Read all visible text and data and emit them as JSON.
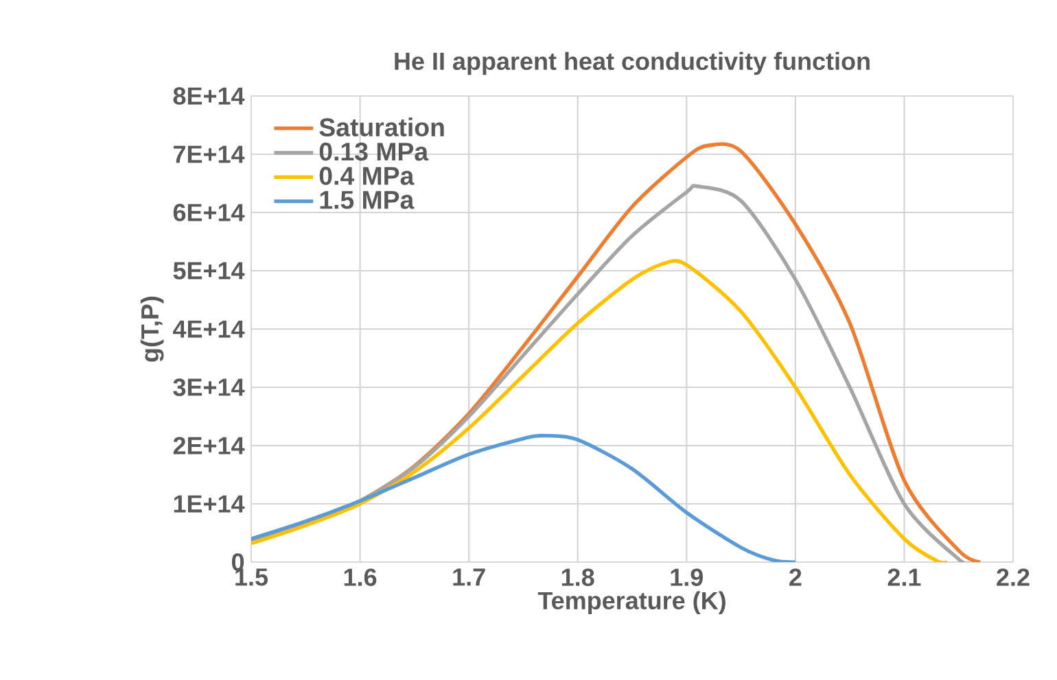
{
  "chart_data": {
    "type": "line",
    "title": "He II apparent heat conductivity function",
    "xlabel": "Temperature (K)",
    "ylabel": "g(T,P)",
    "xlim": [
      1.5,
      2.2
    ],
    "xticks": [
      1.5,
      1.6,
      1.7,
      1.8,
      1.9,
      2,
      2.1,
      2.2
    ],
    "ylim": [
      0,
      800000000000000.0
    ],
    "yticks": [
      {
        "value": 0,
        "label": "0"
      },
      {
        "value": 100000000000000.0,
        "label": "1E+14"
      },
      {
        "value": 200000000000000.0,
        "label": "2E+14"
      },
      {
        "value": 300000000000000.0,
        "label": "3E+14"
      },
      {
        "value": 400000000000000.0,
        "label": "4E+14"
      },
      {
        "value": 500000000000000.0,
        "label": "5E+14"
      },
      {
        "value": 600000000000000.0,
        "label": "6E+14"
      },
      {
        "value": 700000000000000.0,
        "label": "7E+14"
      },
      {
        "value": 800000000000000.0,
        "label": "8E+14"
      }
    ],
    "grid": true,
    "legend": "top left",
    "marker": "none",
    "line_style": "solid",
    "series": [
      {
        "name": "Saturation",
        "color": "#ed7d31",
        "x": [
          1.5,
          1.55,
          1.6,
          1.65,
          1.7,
          1.75,
          1.8,
          1.85,
          1.9,
          1.92,
          1.95,
          2.0,
          2.05,
          2.1,
          2.15,
          2.17
        ],
        "values": [
          36000000000000.0,
          68000000000000.0,
          105000000000000.0,
          165000000000000.0,
          255000000000000.0,
          370000000000000.0,
          490000000000000.0,
          610000000000000.0,
          695000000000000.0,
          715000000000000.0,
          705000000000000.0,
          580000000000000.0,
          410000000000000.0,
          140000000000000.0,
          20000000000000.0,
          0
        ]
      },
      {
        "name": "0.13 MPa",
        "color": "#a5a5a5",
        "x": [
          1.5,
          1.55,
          1.6,
          1.65,
          1.7,
          1.75,
          1.8,
          1.85,
          1.9,
          1.91,
          1.95,
          2.0,
          2.05,
          2.1,
          2.15,
          2.16
        ],
        "values": [
          35000000000000.0,
          67000000000000.0,
          105000000000000.0,
          163000000000000.0,
          250000000000000.0,
          355000000000000.0,
          460000000000000.0,
          560000000000000.0,
          635000000000000.0,
          645000000000000.0,
          620000000000000.0,
          485000000000000.0,
          300000000000000.0,
          100000000000000.0,
          5000000000000.0,
          0
        ]
      },
      {
        "name": "0.4 MPa",
        "color": "#ffc000",
        "x": [
          1.5,
          1.55,
          1.6,
          1.65,
          1.7,
          1.75,
          1.8,
          1.85,
          1.88,
          1.9,
          1.95,
          2.0,
          2.05,
          2.1,
          2.13,
          2.14
        ],
        "values": [
          32000000000000.0,
          63000000000000.0,
          100000000000000.0,
          155000000000000.0,
          230000000000000.0,
          320000000000000.0,
          410000000000000.0,
          485000000000000.0,
          513000000000000.0,
          510000000000000.0,
          430000000000000.0,
          300000000000000.0,
          150000000000000.0,
          40000000000000.0,
          2000000000000.0,
          0
        ]
      },
      {
        "name": "1.5 MPa",
        "color": "#5b9bd5",
        "x": [
          1.5,
          1.55,
          1.6,
          1.65,
          1.7,
          1.75,
          1.77,
          1.8,
          1.85,
          1.9,
          1.95,
          1.98,
          2.0
        ],
        "values": [
          40000000000000.0,
          70000000000000.0,
          105000000000000.0,
          145000000000000.0,
          185000000000000.0,
          212000000000000.0,
          217000000000000.0,
          210000000000000.0,
          160000000000000.0,
          85000000000000.0,
          25000000000000.0,
          3000000000000.0,
          0
        ]
      }
    ]
  }
}
